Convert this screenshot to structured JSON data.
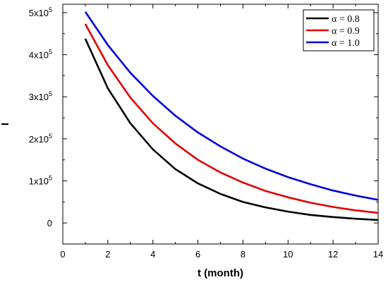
{
  "chart_data": {
    "type": "line",
    "xlabel": "t  (month)",
    "ylabel": "I",
    "xlim": [
      0,
      14
    ],
    "ylim": [
      -50000,
      520000
    ],
    "grid": false,
    "legend_position": "top-right",
    "x_ticks": [
      0,
      2,
      4,
      6,
      8,
      10,
      12,
      14
    ],
    "x_tick_labels": [
      "0",
      "2",
      "4",
      "6",
      "8",
      "10",
      "12",
      "14"
    ],
    "y_ticks": [
      0,
      100000,
      200000,
      300000,
      400000,
      500000
    ],
    "y_tick_labels": [
      {
        "base": "0",
        "exp": ""
      },
      {
        "base": "1x10",
        "exp": "5"
      },
      {
        "base": "2x10",
        "exp": "5"
      },
      {
        "base": "3x10",
        "exp": "5"
      },
      {
        "base": "4x10",
        "exp": "5"
      },
      {
        "base": "5x10",
        "exp": "5"
      }
    ],
    "x": [
      1,
      2,
      3,
      4,
      5,
      6,
      7,
      8,
      9,
      10,
      11,
      12,
      13,
      14
    ],
    "series": [
      {
        "name": "α = 0.8",
        "color": "#000000",
        "values": [
          438000,
          320000,
          237000,
          175000,
          128000,
          94000,
          69000,
          50000,
          37000,
          27000,
          19000,
          14000,
          10000,
          7000
        ]
      },
      {
        "name": "α = 0.9",
        "color": "#e00000",
        "values": [
          473000,
          375000,
          298000,
          237000,
          189000,
          150000,
          120000,
          96000,
          76000,
          61000,
          48000,
          38000,
          30000,
          24000
        ]
      },
      {
        "name": "α = 1.0",
        "color": "#0000dd",
        "values": [
          502000,
          423000,
          357000,
          302000,
          255000,
          215000,
          182000,
          153000,
          129000,
          109000,
          92000,
          77000,
          65000,
          55000
        ]
      }
    ]
  }
}
